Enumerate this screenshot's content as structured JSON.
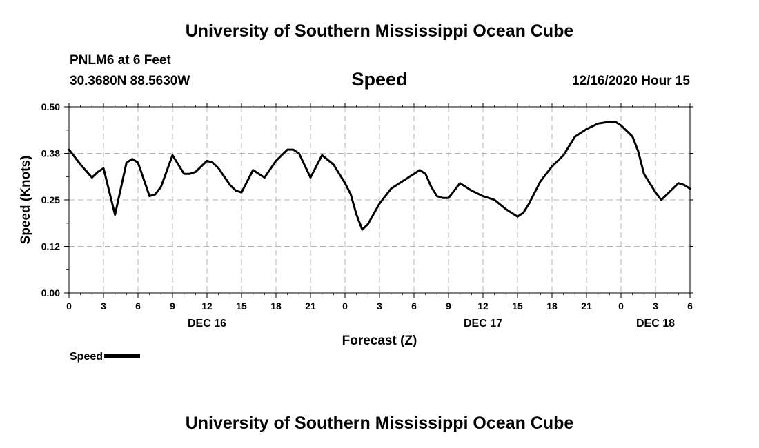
{
  "header": {
    "title": "University of Southern Mississippi Ocean Cube",
    "station": "PNLM6 at 6 Feet",
    "coordinates": "30.3680N 88.5630W",
    "run_time": "12/16/2020 Hour 15"
  },
  "footer": {
    "title": "University of Southern Mississippi Ocean Cube"
  },
  "legend": {
    "label": "Speed"
  },
  "colors": {
    "line": "#000000",
    "grid": "#b4b4b4",
    "background": "#ffffff"
  },
  "chart_data": {
    "type": "line",
    "title": "Speed",
    "xlabel": "Forecast (Z)",
    "ylabel": "Speed (Knots)",
    "ylim": [
      0,
      0.5
    ],
    "xlim": [
      0,
      54
    ],
    "y_ticks": [
      0.0,
      0.125,
      0.25,
      0.375,
      0.5
    ],
    "y_tick_labels": [
      "0.00",
      "0.12",
      "0.25",
      "0.38",
      "0.50"
    ],
    "x_ticks": [
      0,
      3,
      6,
      9,
      12,
      15,
      18,
      21,
      24,
      27,
      30,
      33,
      36,
      39,
      42,
      45,
      48,
      51,
      54
    ],
    "x_tick_labels": [
      "0",
      "3",
      "6",
      "9",
      "12",
      "15",
      "18",
      "21",
      "0",
      "3",
      "6",
      "9",
      "12",
      "15",
      "18",
      "21",
      "0",
      "3",
      "6"
    ],
    "day_labels": [
      {
        "x": 12,
        "label": "DEC 16"
      },
      {
        "x": 36,
        "label": "DEC 17"
      },
      {
        "x": 51,
        "label": "DEC 18"
      }
    ],
    "grid": true,
    "legend_position": "bottom-left",
    "series": [
      {
        "name": "Speed",
        "x": [
          0,
          1,
          2,
          2.5,
          3,
          4,
          5,
          5.5,
          6,
          7,
          7.5,
          8,
          9,
          10,
          10.5,
          11,
          12,
          12.5,
          13,
          14,
          14.5,
          15,
          16,
          17,
          18,
          19,
          19.5,
          20,
          21,
          22,
          23,
          24,
          24.5,
          25,
          25.5,
          26,
          27,
          28,
          29,
          30,
          30.5,
          31,
          31.5,
          32,
          32.5,
          33,
          34,
          35,
          36,
          37,
          38,
          39,
          39.5,
          40,
          41,
          42,
          43,
          44,
          45,
          46,
          47,
          47.5,
          48,
          49,
          49.5,
          50,
          51,
          51.5,
          52,
          53,
          53.5,
          54
        ],
        "y": [
          0.385,
          0.345,
          0.31,
          0.325,
          0.335,
          0.21,
          0.35,
          0.36,
          0.35,
          0.26,
          0.265,
          0.285,
          0.37,
          0.32,
          0.32,
          0.325,
          0.355,
          0.35,
          0.335,
          0.29,
          0.275,
          0.27,
          0.33,
          0.31,
          0.355,
          0.385,
          0.385,
          0.375,
          0.31,
          0.37,
          0.345,
          0.295,
          0.265,
          0.21,
          0.17,
          0.185,
          0.24,
          0.28,
          0.3,
          0.32,
          0.33,
          0.32,
          0.285,
          0.26,
          0.255,
          0.255,
          0.295,
          0.275,
          0.26,
          0.25,
          0.225,
          0.205,
          0.215,
          0.24,
          0.3,
          0.34,
          0.37,
          0.42,
          0.44,
          0.455,
          0.46,
          0.46,
          0.45,
          0.42,
          0.38,
          0.32,
          0.27,
          0.25,
          0.265,
          0.295,
          0.29,
          0.28
        ]
      }
    ]
  }
}
